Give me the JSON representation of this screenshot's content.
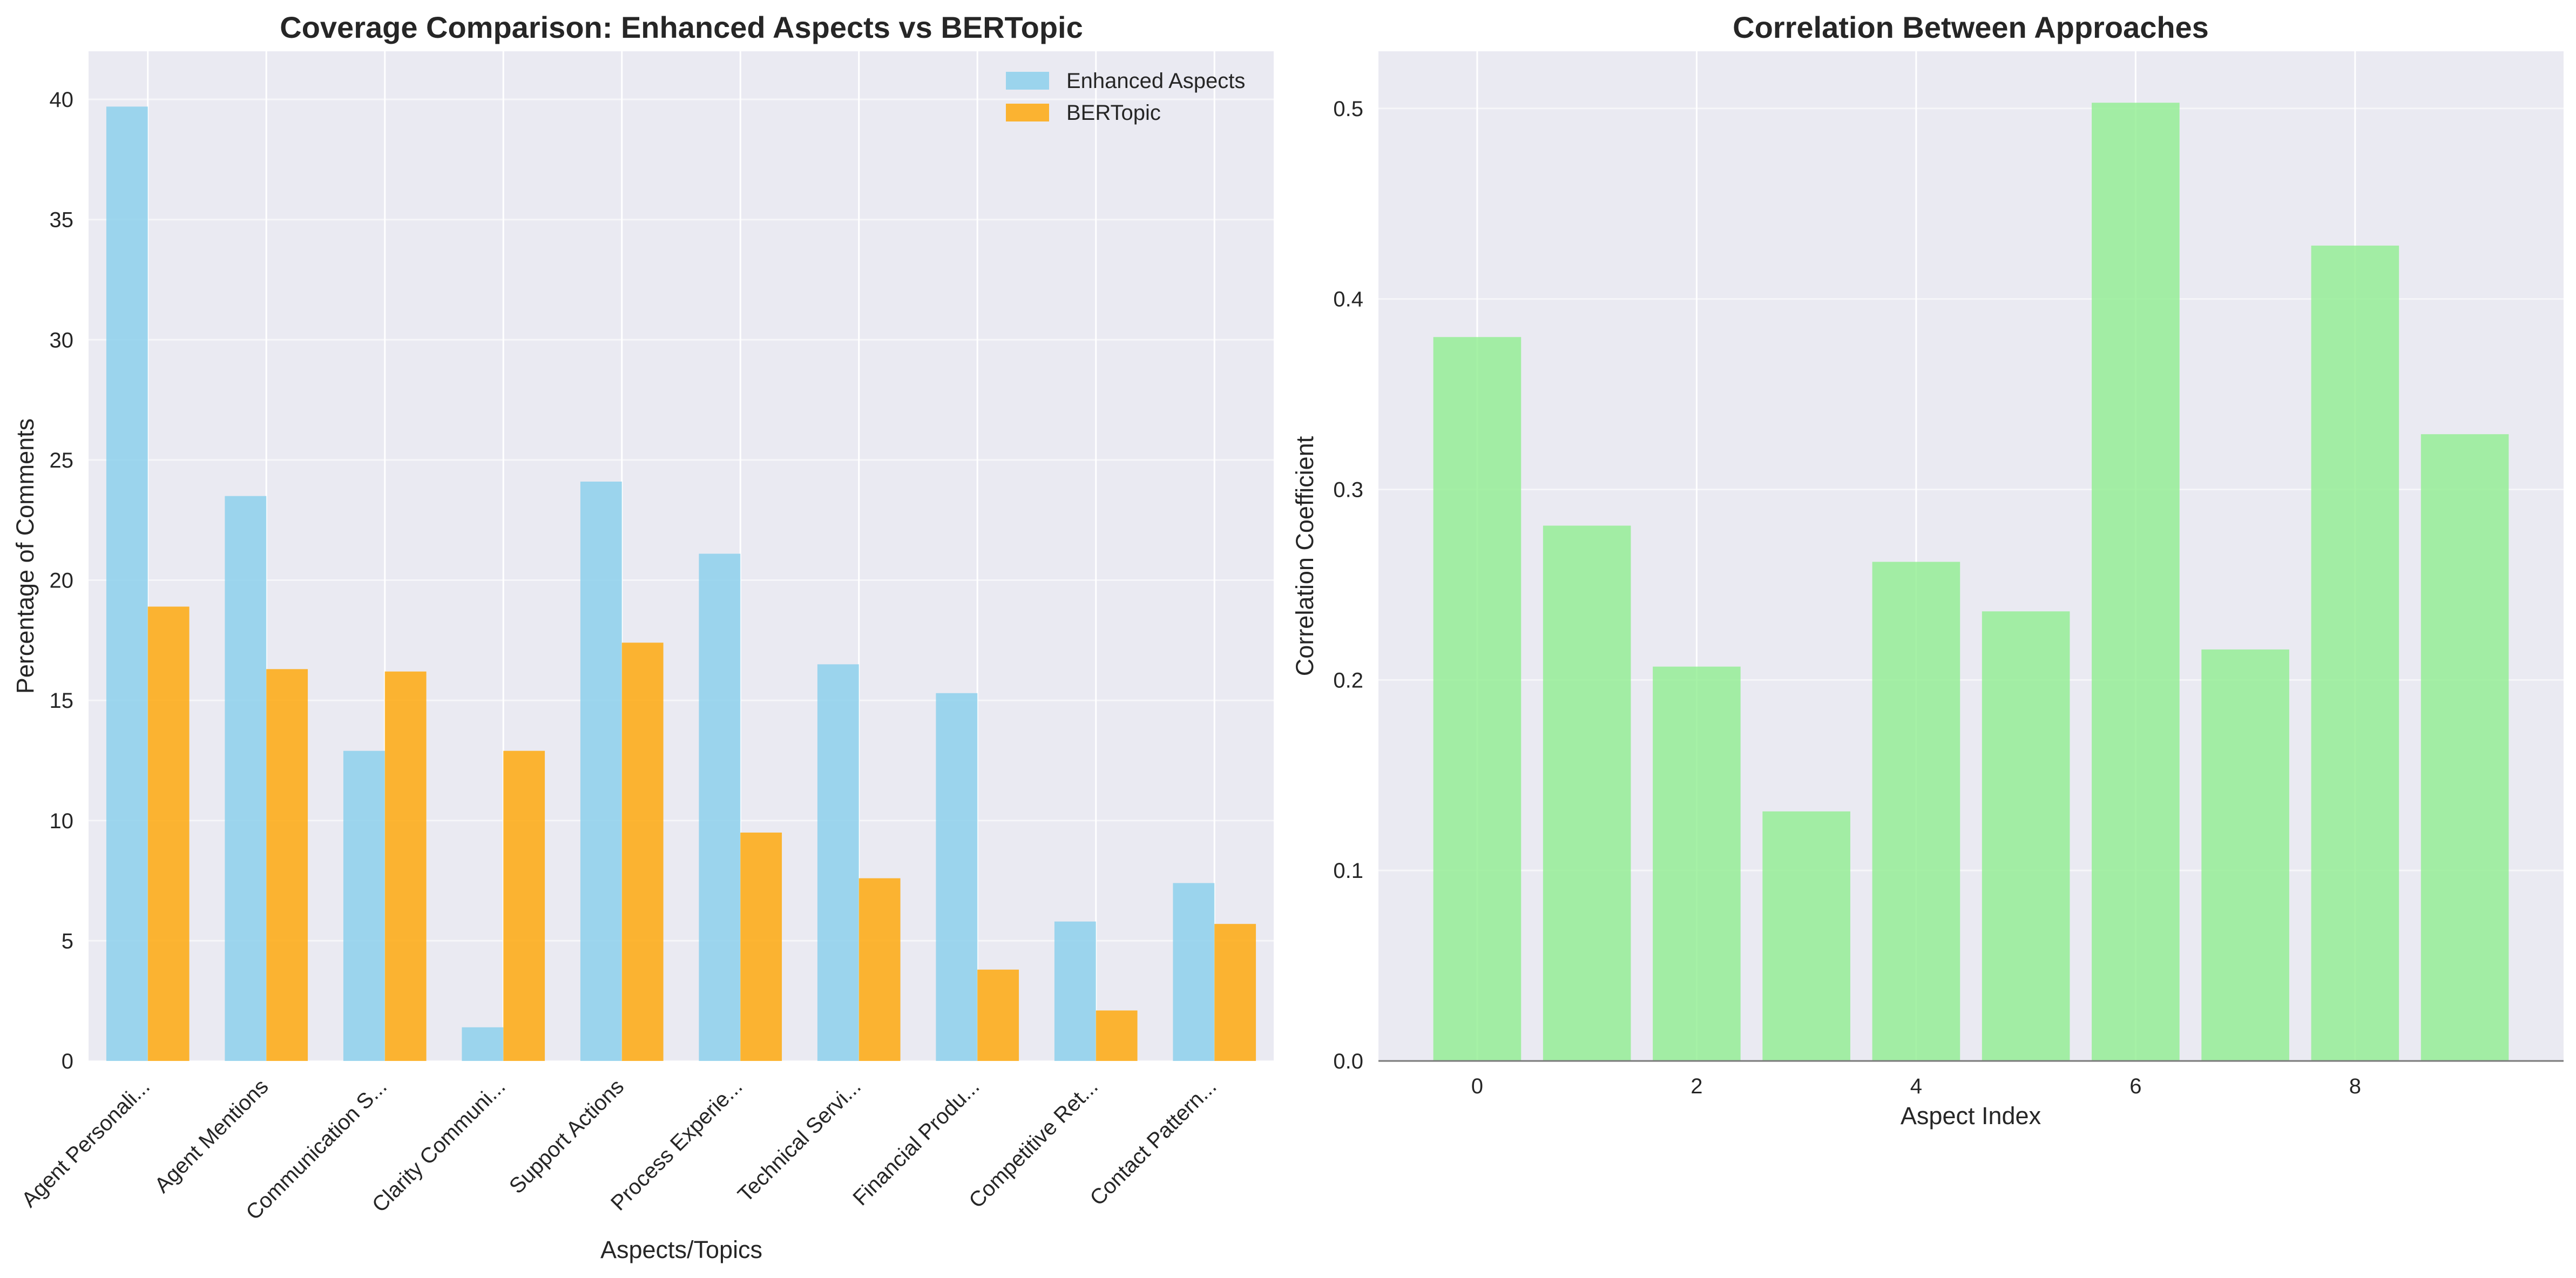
{
  "chart_data": [
    {
      "type": "bar",
      "title": "Coverage Comparison: Enhanced Aspects vs BERTopic",
      "xlabel": "Aspects/Topics",
      "ylabel": "Percentage of Comments",
      "ylim": [
        0,
        42
      ],
      "yticks": [
        0,
        5,
        10,
        15,
        20,
        25,
        30,
        35,
        40
      ],
      "grid": true,
      "legend_position": "top-right",
      "categories": [
        "Agent Personali...",
        "Agent Mentions",
        "Communication S...",
        "Clarity Communi...",
        "Support Actions",
        "Process Experie...",
        "Technical Servi...",
        "Financial Produ...",
        "Competitive Ret...",
        "Contact Pattern..."
      ],
      "series": [
        {
          "name": "Enhanced Aspects",
          "color": "#87ceeb",
          "values": [
            39.7,
            23.5,
            12.9,
            1.4,
            24.1,
            21.1,
            16.5,
            15.3,
            5.8,
            7.4
          ]
        },
        {
          "name": "BERTopic",
          "color": "#ffa500",
          "values": [
            18.9,
            16.3,
            16.2,
            12.9,
            17.4,
            9.5,
            7.6,
            3.8,
            2.1,
            5.7
          ]
        }
      ]
    },
    {
      "type": "bar",
      "title": "Correlation Between Approaches",
      "xlabel": "Aspect Index",
      "ylabel": "Correlation Coefficient",
      "ylim": [
        0,
        0.53
      ],
      "yticks": [
        0.0,
        0.1,
        0.2,
        0.3,
        0.4,
        0.5
      ],
      "xticks": [
        0,
        2,
        4,
        6,
        8
      ],
      "xlim": [
        -0.9,
        9.9
      ],
      "grid": true,
      "x": [
        0,
        1,
        2,
        3,
        4,
        5,
        6,
        7,
        8,
        9
      ],
      "values": [
        0.38,
        0.281,
        0.207,
        0.131,
        0.262,
        0.236,
        0.503,
        0.216,
        0.428,
        0.329
      ],
      "color": "#90ee90"
    }
  ]
}
